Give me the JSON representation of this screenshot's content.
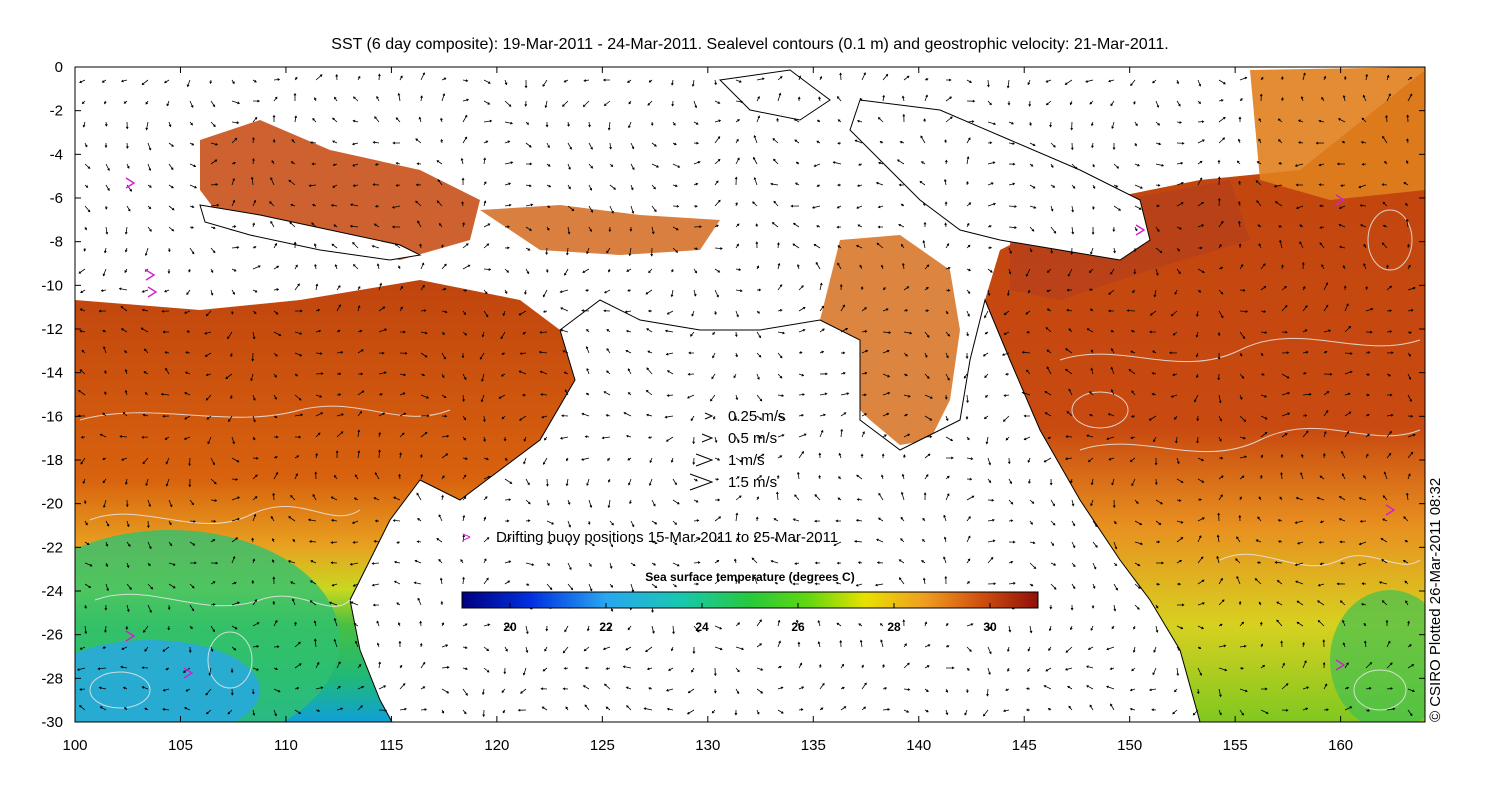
{
  "title": "SST (6 day composite): 19-Mar-2011 - 24-Mar-2011. Sealevel contours (0.1 m) and geostrophic velocity: 21-Mar-2011.",
  "credit": "© CSIRO Plotted 26-Mar-2011 08:32",
  "buoy_legend": "Drifting buoy positions 15-Mar-2011 to 25-Mar-2011",
  "buoy_symbol": ">",
  "buoy_color": "#d020d0",
  "velocity_legend": [
    {
      "speed": 0.25,
      "label": "0.25 m/s"
    },
    {
      "speed": 0.5,
      "label": "0.5 m/s"
    },
    {
      "speed": 1,
      "label": "1 m/s"
    },
    {
      "speed": 1.5,
      "label": "1.5 m/s"
    }
  ],
  "colorbar": {
    "title": "Sea surface temperature (degrees C)",
    "range": [
      19,
      31
    ],
    "ticks": [
      "20",
      "22",
      "24",
      "26",
      "28",
      "30"
    ],
    "tick_values": [
      20,
      22,
      24,
      26,
      28,
      30
    ]
  },
  "axes": {
    "x_range": [
      100,
      164
    ],
    "y_range": [
      -30,
      0
    ],
    "x_ticks": [
      "100",
      "105",
      "110",
      "115",
      "120",
      "125",
      "130",
      "135",
      "140",
      "145",
      "150",
      "155",
      "160"
    ],
    "x_tick_values": [
      100,
      105,
      110,
      115,
      120,
      125,
      130,
      135,
      140,
      145,
      150,
      155,
      160
    ],
    "y_ticks": [
      "0",
      "-2",
      "-4",
      "-6",
      "-8",
      "-10",
      "-12",
      "-14",
      "-16",
      "-18",
      "-20",
      "-22",
      "-24",
      "-26",
      "-28",
      "-30"
    ],
    "y_tick_values": [
      0,
      -2,
      -4,
      -6,
      -8,
      -10,
      -12,
      -14,
      -16,
      -18,
      -20,
      -22,
      -24,
      -26,
      -28,
      -30
    ]
  },
  "colors": {
    "land": "#ffffff",
    "coast": "#000000",
    "contour": "#e8e8e8",
    "arrow": "#000000"
  }
}
